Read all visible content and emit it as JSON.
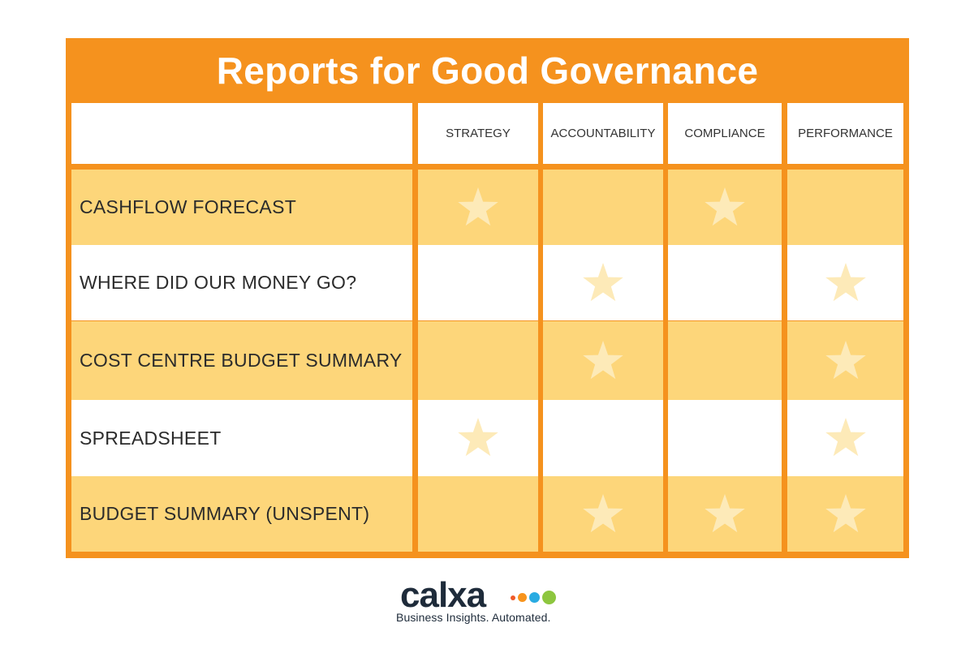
{
  "title": "Reports for Good Governance",
  "columns": [
    "STRATEGY",
    "ACCOUNTABILITY",
    "COMPLIANCE",
    "PERFORMANCE"
  ],
  "rows": [
    {
      "label": "CASHFLOW FORECAST",
      "marks": [
        true,
        false,
        true,
        false
      ]
    },
    {
      "label": "WHERE DID OUR MONEY GO?",
      "marks": [
        false,
        true,
        false,
        true
      ]
    },
    {
      "label": "COST CENTRE BUDGET SUMMARY",
      "marks": [
        false,
        true,
        false,
        true
      ]
    },
    {
      "label": "SPREADSHEET",
      "marks": [
        true,
        false,
        false,
        true
      ]
    },
    {
      "label": "BUDGET SUMMARY (UNSPENT)",
      "marks": [
        false,
        true,
        true,
        true
      ]
    }
  ],
  "mark_icon": "star-icon",
  "colors": {
    "frame": "#f5921e",
    "row_shaded": "#fdd67a",
    "row_plain": "#ffffff",
    "star": "#fdeab8",
    "logo_text": "#1e2b3a",
    "logo_dots": [
      "#f05a28",
      "#f7941d",
      "#29abe2",
      "#8dc63f"
    ]
  },
  "logo": {
    "wordmark": "calxa",
    "tagline": "Business Insights. Automated."
  }
}
